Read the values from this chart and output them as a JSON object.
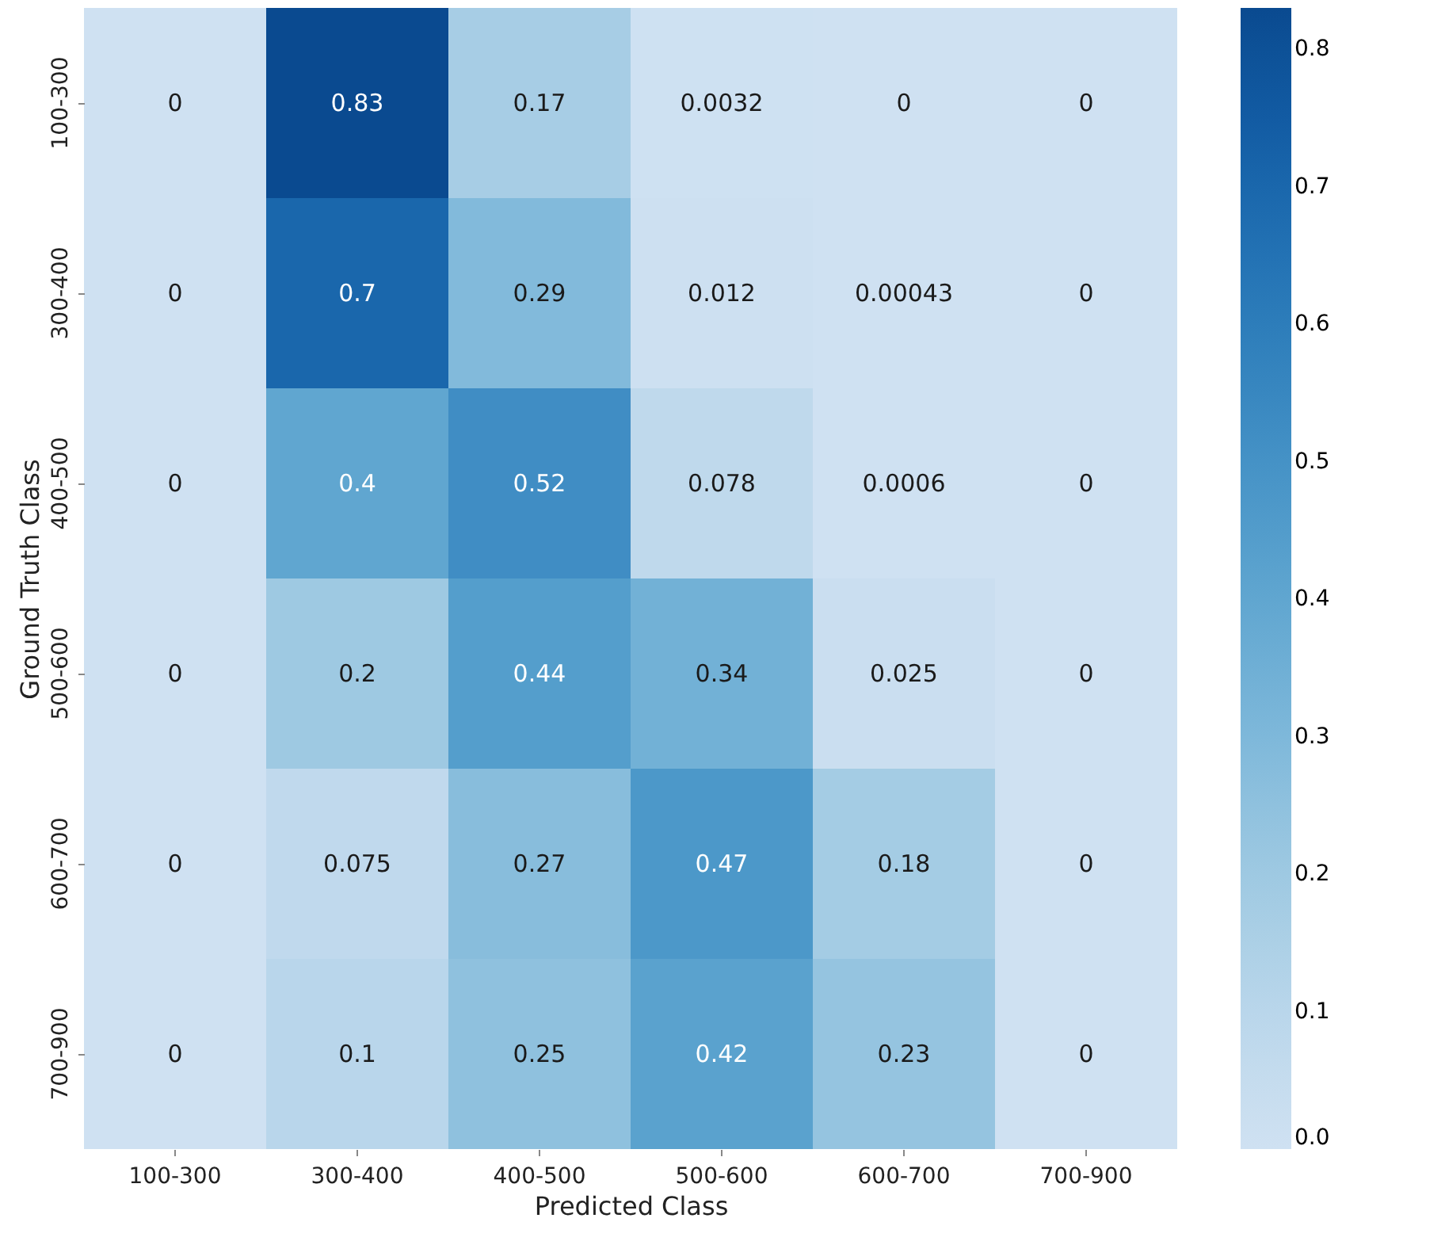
{
  "chart_data": {
    "type": "heatmap",
    "xlabel": "Predicted Class",
    "ylabel": "Ground Truth Class",
    "categories": [
      "100-300",
      "300-400",
      "400-500",
      "500-600",
      "600-700",
      "700-900"
    ],
    "y_categories": [
      "100-300",
      "300-400",
      "400-500",
      "500-600",
      "600-700",
      "700-900"
    ],
    "cells": [
      [
        0,
        0.83,
        0.17,
        0.0032,
        0,
        0
      ],
      [
        0,
        0.7,
        0.29,
        0.012,
        0.00043,
        0
      ],
      [
        0,
        0.4,
        0.52,
        0.078,
        0.0006,
        0
      ],
      [
        0,
        0.2,
        0.44,
        0.34,
        0.025,
        0
      ],
      [
        0,
        0.075,
        0.27,
        0.47,
        0.18,
        0
      ],
      [
        0,
        0.1,
        0.25,
        0.42,
        0.23,
        0
      ]
    ],
    "data_labels": true,
    "clim": [
      0,
      0.83
    ],
    "cticks": [
      {
        "value": 0,
        "label": "0.0"
      },
      {
        "value": 0.1,
        "label": "0.1"
      },
      {
        "value": 0.2,
        "label": "0.2"
      },
      {
        "value": 0.3,
        "label": "0.3"
      },
      {
        "value": 0.4,
        "label": "0.4"
      },
      {
        "value": 0.5,
        "label": "0.5"
      },
      {
        "value": 0.6,
        "label": "0.6"
      },
      {
        "value": 0.7,
        "label": "0.7"
      },
      {
        "value": 0.8,
        "label": "0.8"
      }
    ]
  }
}
